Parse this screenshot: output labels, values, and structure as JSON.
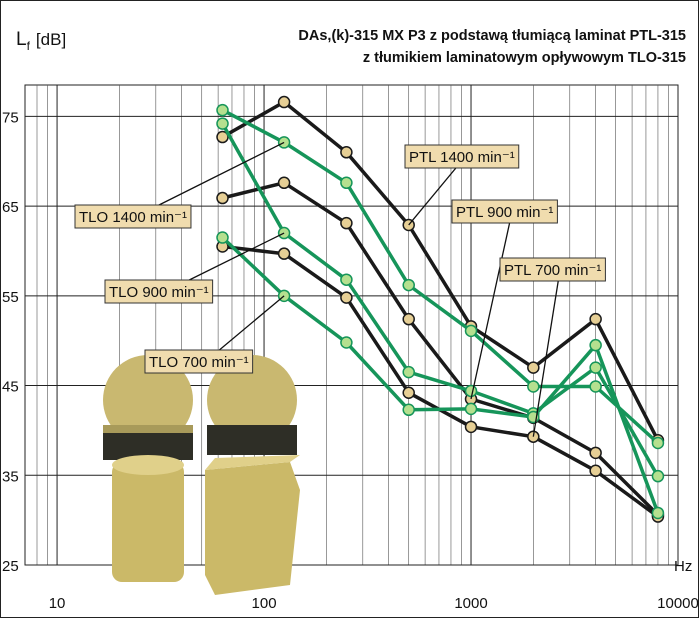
{
  "chart_data": {
    "type": "line",
    "title": "DAs,(k)-315 MX P3 z podstawą tłumiącą laminat PTL-315",
    "subtitle": "z tłumikiem laminatowym opływowym TLO-315",
    "ylabel_main": "L",
    "ylabel_sub": "f",
    "ylabel_unit": "[dB]",
    "xlabel": "Hz",
    "x": [
      63,
      125,
      250,
      500,
      1000,
      2000,
      4000,
      8000
    ],
    "xscale": "log",
    "xlim": [
      7,
      10000
    ],
    "xticks": [
      10,
      100,
      1000,
      10000
    ],
    "ylim": [
      25,
      78.5
    ],
    "yticks": [
      25,
      35,
      45,
      55,
      65,
      75
    ],
    "grid": true,
    "x_minor_grid": true,
    "series": [
      {
        "name": "PTL 1400 min⁻¹",
        "color": "#1a1a1a",
        "values": [
          72.7,
          76.6,
          71,
          62.9,
          51.6,
          47,
          52.4,
          38.9
        ]
      },
      {
        "name": "PTL 900 min⁻¹",
        "color": "#1a1a1a",
        "values": [
          65.9,
          67.6,
          63.1,
          52.4,
          43.5,
          41.4,
          37.5,
          30.6
        ]
      },
      {
        "name": "PTL 700 min⁻¹",
        "color": "#1a1a1a",
        "values": [
          60.5,
          59.7,
          54.8,
          44.2,
          40.4,
          39.3,
          35.5,
          30.4
        ]
      },
      {
        "name": "TLO 1400 min⁻¹",
        "color": "#16955a",
        "values": [
          75.7,
          72.1,
          67.6,
          56.2,
          51.1,
          44.9,
          44.9,
          38.6
        ]
      },
      {
        "name": "TLO 900 min⁻¹",
        "color": "#16955a",
        "values": [
          74.2,
          62,
          56.8,
          46.5,
          44.4,
          41.9,
          47,
          34.9
        ]
      },
      {
        "name": "TLO 700 min⁻¹",
        "color": "#16955a",
        "values": [
          61.5,
          55,
          49.8,
          42.3,
          42.4,
          41.5,
          49.5,
          30.8
        ]
      }
    ]
  }
}
